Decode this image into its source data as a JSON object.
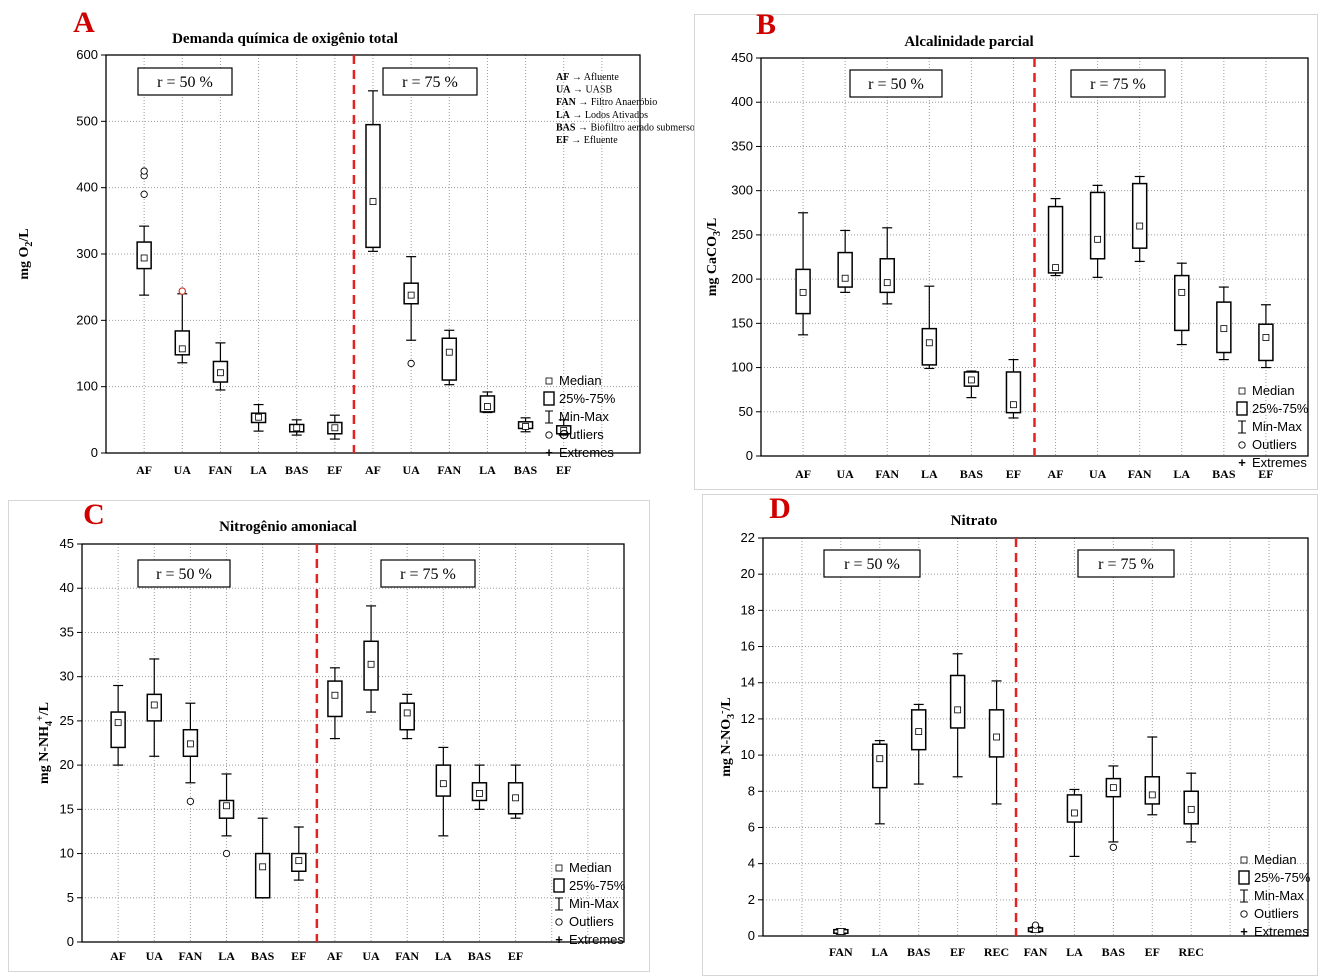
{
  "legend": {
    "median": "Median",
    "box": "25%-75%",
    "range": "Min-Max",
    "outliers": "Outliers",
    "extremes": "Extremes"
  },
  "colors": {
    "divider": "#e52222",
    "panel_letter": "#d00000",
    "outlier_red": "#c0392b",
    "grid": "#9e9e9e"
  },
  "chart_data": [
    {
      "id": "A",
      "type": "box",
      "panel_letter": "A",
      "title": "Demanda química de oxigênio total",
      "ylabel": "mg O",
      "ylabel_sub": "2",
      "ylabel_tail": "/L",
      "ylim": [
        0,
        600
      ],
      "yticks": [
        0,
        100,
        200,
        300,
        400,
        500,
        600
      ],
      "region_labels": [
        "r = 50 %",
        "r = 75 %"
      ],
      "abbreviations": [
        {
          "code": "AF",
          "meaning": "Afluente"
        },
        {
          "code": "UA",
          "meaning": "UASB"
        },
        {
          "code": "FAN",
          "meaning": "Filtro Anaeróbio"
        },
        {
          "code": "LA",
          "meaning": "Lodos Ativados"
        },
        {
          "code": "BAS",
          "meaning": "Biofiltro aerado submerso"
        },
        {
          "code": "EF",
          "meaning": "Efluente"
        }
      ],
      "categories": [
        "AF",
        "UA",
        "FAN",
        "LA",
        "BAS",
        "EF",
        "AF",
        "UA",
        "FAN",
        "LA",
        "BAS",
        "EF"
      ],
      "divider_after": 6,
      "grid_columns": 14,
      "boxes": [
        {
          "cat": 0,
          "min": 238,
          "q1": 278,
          "median": 294,
          "q3": 318,
          "max": 342,
          "outliers": [
            390,
            418,
            425
          ]
        },
        {
          "cat": 1,
          "min": 136,
          "q1": 148,
          "median": 157,
          "q3": 184,
          "max": 240,
          "outliers": [],
          "red_outliers": [
            244
          ]
        },
        {
          "cat": 2,
          "min": 95,
          "q1": 107,
          "median": 121,
          "q3": 138,
          "max": 166,
          "outliers": []
        },
        {
          "cat": 3,
          "min": 33,
          "q1": 46,
          "median": 54,
          "q3": 60,
          "max": 73,
          "outliers": []
        },
        {
          "cat": 4,
          "min": 27,
          "q1": 32,
          "median": 38,
          "q3": 43,
          "max": 50,
          "outliers": []
        },
        {
          "cat": 5,
          "min": 21,
          "q1": 29,
          "median": 38,
          "q3": 46,
          "max": 57,
          "outliers": []
        },
        {
          "cat": 6,
          "min": 304,
          "q1": 310,
          "median": 379,
          "q3": 495,
          "max": 546,
          "outliers": []
        },
        {
          "cat": 7,
          "min": 170,
          "q1": 225,
          "median": 238,
          "q3": 256,
          "max": 296,
          "outliers": [
            135
          ]
        },
        {
          "cat": 8,
          "min": 103,
          "q1": 110,
          "median": 152,
          "q3": 173,
          "max": 185,
          "outliers": []
        },
        {
          "cat": 9,
          "min": 61,
          "q1": 62,
          "median": 70,
          "q3": 86,
          "max": 92,
          "outliers": []
        },
        {
          "cat": 10,
          "min": 32,
          "q1": 37,
          "median": 40,
          "q3": 47,
          "max": 53,
          "outliers": []
        },
        {
          "cat": 11,
          "min": 27,
          "q1": 29,
          "median": 34,
          "q3": 41,
          "max": 50,
          "outliers": []
        }
      ]
    },
    {
      "id": "B",
      "type": "box",
      "panel_letter": "B",
      "title": "Alcalinidade parcial",
      "ylabel": "mg CaCO",
      "ylabel_sub": "3",
      "ylabel_tail": "/L",
      "ylim": [
        0,
        450
      ],
      "yticks": [
        0,
        50,
        100,
        150,
        200,
        250,
        300,
        350,
        400,
        450
      ],
      "region_labels": [
        "r = 50 %",
        "r = 75 %"
      ],
      "categories": [
        "AF",
        "UA",
        "FAN",
        "LA",
        "BAS",
        "EF",
        "AF",
        "UA",
        "FAN",
        "LA",
        "BAS",
        "EF"
      ],
      "divider_after": 6,
      "grid_columns": 13,
      "boxes": [
        {
          "cat": 0,
          "min": 137,
          "q1": 161,
          "median": 185,
          "q3": 211,
          "max": 275
        },
        {
          "cat": 1,
          "min": 185,
          "q1": 191,
          "median": 201,
          "q3": 230,
          "max": 255
        },
        {
          "cat": 2,
          "min": 172,
          "q1": 185,
          "median": 196,
          "q3": 223,
          "max": 258
        },
        {
          "cat": 3,
          "min": 99,
          "q1": 103,
          "median": 128,
          "q3": 144,
          "max": 192
        },
        {
          "cat": 4,
          "min": 66,
          "q1": 79,
          "median": 86,
          "q3": 95,
          "max": 96
        },
        {
          "cat": 5,
          "min": 43,
          "q1": 49,
          "median": 58,
          "q3": 95,
          "max": 109
        },
        {
          "cat": 6,
          "min": 204,
          "q1": 207,
          "median": 213,
          "q3": 282,
          "max": 291
        },
        {
          "cat": 7,
          "min": 202,
          "q1": 223,
          "median": 245,
          "q3": 298,
          "max": 306
        },
        {
          "cat": 8,
          "min": 220,
          "q1": 235,
          "median": 260,
          "q3": 308,
          "max": 316
        },
        {
          "cat": 9,
          "min": 126,
          "q1": 142,
          "median": 185,
          "q3": 204,
          "max": 218
        },
        {
          "cat": 10,
          "min": 109,
          "q1": 117,
          "median": 144,
          "q3": 174,
          "max": 191
        },
        {
          "cat": 11,
          "min": 100,
          "q1": 108,
          "median": 134,
          "q3": 149,
          "max": 171
        }
      ]
    },
    {
      "id": "C",
      "type": "box",
      "panel_letter": "C",
      "title": "Nitrogênio amoniacal",
      "ylabel": "mg N-NH",
      "ylabel_sub": "4",
      "ylabel_sup": "+",
      "ylabel_tail": "/L",
      "ylim": [
        0,
        45
      ],
      "yticks": [
        0,
        5,
        10,
        15,
        20,
        25,
        30,
        35,
        40,
        45
      ],
      "region_labels": [
        "r = 50 %",
        "r = 75 %"
      ],
      "categories": [
        "AF",
        "UA",
        "FAN",
        "LA",
        "BAS",
        "EF",
        "AF",
        "UA",
        "FAN",
        "LA",
        "BAS",
        "EF"
      ],
      "divider_after": 6,
      "grid_columns": 15,
      "boxes": [
        {
          "cat": 0,
          "min": 20,
          "q1": 22,
          "median": 24.8,
          "q3": 26,
          "max": 29,
          "outliers": []
        },
        {
          "cat": 1,
          "min": 21,
          "q1": 25,
          "median": 26.8,
          "q3": 28,
          "max": 32,
          "outliers": []
        },
        {
          "cat": 2,
          "min": 18,
          "q1": 21,
          "median": 22.4,
          "q3": 24,
          "max": 27,
          "outliers": [
            15.9
          ]
        },
        {
          "cat": 3,
          "min": 12,
          "q1": 14,
          "median": 15.4,
          "q3": 16,
          "max": 19,
          "outliers": [
            10
          ]
        },
        {
          "cat": 4,
          "min": 5,
          "q1": 5,
          "median": 8.5,
          "q3": 10,
          "max": 14,
          "outliers": []
        },
        {
          "cat": 5,
          "min": 7,
          "q1": 8,
          "median": 9.2,
          "q3": 10,
          "max": 13,
          "outliers": []
        },
        {
          "cat": 6,
          "min": 23,
          "q1": 25.5,
          "median": 27.9,
          "q3": 29.5,
          "max": 31,
          "outliers": []
        },
        {
          "cat": 7,
          "min": 26,
          "q1": 28.5,
          "median": 31.4,
          "q3": 34,
          "max": 38,
          "outliers": []
        },
        {
          "cat": 8,
          "min": 23,
          "q1": 24,
          "median": 25.9,
          "q3": 27,
          "max": 28,
          "outliers": []
        },
        {
          "cat": 9,
          "min": 12,
          "q1": 16.5,
          "median": 17.9,
          "q3": 20,
          "max": 22,
          "outliers": []
        },
        {
          "cat": 10,
          "min": 15,
          "q1": 16,
          "median": 16.8,
          "q3": 18,
          "max": 20,
          "outliers": []
        },
        {
          "cat": 11,
          "min": 14,
          "q1": 14.5,
          "median": 16.3,
          "q3": 18,
          "max": 20,
          "outliers": []
        }
      ]
    },
    {
      "id": "D",
      "type": "box",
      "panel_letter": "D",
      "title": "Nitrato",
      "ylabel": "mg N-NO",
      "ylabel_sub": "3",
      "ylabel_sup": "-",
      "ylabel_tail": "/L",
      "ylim": [
        0,
        22
      ],
      "yticks": [
        0,
        2,
        4,
        6,
        8,
        10,
        12,
        14,
        16,
        18,
        20,
        22
      ],
      "region_labels": [
        "r = 50 %",
        "r = 75 %"
      ],
      "categories": [
        "FAN",
        "LA",
        "BAS",
        "EF",
        "REC",
        "FAN",
        "LA",
        "BAS",
        "EF",
        "REC"
      ],
      "divider_after": 5,
      "grid_columns": 14,
      "cat_offset": 2,
      "boxes": [
        {
          "cat": 0,
          "min": 0.1,
          "q1": 0.15,
          "median": 0.25,
          "q3": 0.35,
          "max": 0.4,
          "outliers": []
        },
        {
          "cat": 1,
          "min": 6.2,
          "q1": 8.2,
          "median": 9.8,
          "q3": 10.6,
          "max": 10.8,
          "outliers": []
        },
        {
          "cat": 2,
          "min": 8.4,
          "q1": 10.3,
          "median": 11.3,
          "q3": 12.5,
          "max": 12.8,
          "outliers": []
        },
        {
          "cat": 3,
          "min": 8.8,
          "q1": 11.5,
          "median": 12.5,
          "q3": 14.4,
          "max": 15.6,
          "outliers": []
        },
        {
          "cat": 4,
          "min": 7.3,
          "q1": 9.9,
          "median": 11,
          "q3": 12.5,
          "max": 14.1,
          "outliers": []
        },
        {
          "cat": 5,
          "min": 0.2,
          "q1": 0.25,
          "median": 0.35,
          "q3": 0.45,
          "max": 0.5,
          "outliers": [
            0.6
          ]
        },
        {
          "cat": 6,
          "min": 4.4,
          "q1": 6.3,
          "median": 6.8,
          "q3": 7.8,
          "max": 8.1,
          "outliers": []
        },
        {
          "cat": 7,
          "min": 5.2,
          "q1": 7.7,
          "median": 8.2,
          "q3": 8.7,
          "max": 9.4,
          "outliers": [
            4.9
          ]
        },
        {
          "cat": 8,
          "min": 6.7,
          "q1": 7.3,
          "median": 7.8,
          "q3": 8.8,
          "max": 11,
          "outliers": []
        },
        {
          "cat": 9,
          "min": 5.2,
          "q1": 6.2,
          "median": 7,
          "q3": 8,
          "max": 9,
          "outliers": []
        }
      ]
    }
  ]
}
